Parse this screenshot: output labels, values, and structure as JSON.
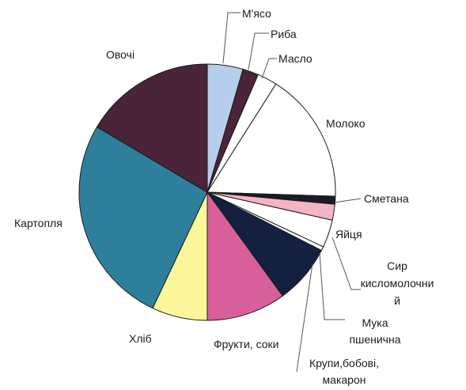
{
  "chart_data": {
    "type": "pie",
    "title": "",
    "start_angle_deg": 0,
    "direction": "clockwise",
    "legend": "none",
    "slices": [
      {
        "label": "М'ясо",
        "value": 4.5,
        "color": "#b7cdec",
        "label_lines": [
          "М'ясо"
        ]
      },
      {
        "label": "Риба",
        "value": 2.0,
        "color": "#4a2438",
        "label_lines": [
          "Риба"
        ]
      },
      {
        "label": "Масло",
        "value": 2.5,
        "color": "#ffffff",
        "label_lines": [
          "Масло"
        ]
      },
      {
        "label": "Молоко",
        "value": 16.5,
        "color": "#ffffff",
        "label_lines": [
          "Молоко"
        ]
      },
      {
        "label": "Сметана",
        "value": 1.0,
        "color": "#1c1a26",
        "label_lines": [
          "Сметана"
        ]
      },
      {
        "label": "Яйця",
        "value": 2.0,
        "color": "#f4b4c4",
        "label_lines": [
          "Яйця"
        ]
      },
      {
        "label": "Сир кисломолочний",
        "value": 3.5,
        "color": "#ffffff",
        "label_lines": [
          "Сир",
          "кисломолочни",
          "й"
        ]
      },
      {
        "label": "Мука пшенична",
        "value": 0.5,
        "color": "#ffffff",
        "label_lines": [
          "Мука",
          "пшенична"
        ]
      },
      {
        "label": "Крупи,бобові, макарон",
        "value": 7.5,
        "color": "#142040",
        "label_lines": [
          "Крупи,бобові,",
          "макарон"
        ]
      },
      {
        "label": "Фрукти, соки",
        "value": 10.0,
        "color": "#d8609a",
        "label_lines": [
          "Фрукти, соки"
        ]
      },
      {
        "label": "Хліб",
        "value": 7.0,
        "color": "#fbf69a",
        "label_lines": [
          "Хліб"
        ]
      },
      {
        "label": "Картопля",
        "value": 26.5,
        "color": "#2e7f9c",
        "label_lines": [
          "Картопля"
        ]
      },
      {
        "label": "Овочі",
        "value": 16.5,
        "color": "#4a2438",
        "label_lines": [
          "Овочі"
        ]
      }
    ]
  }
}
